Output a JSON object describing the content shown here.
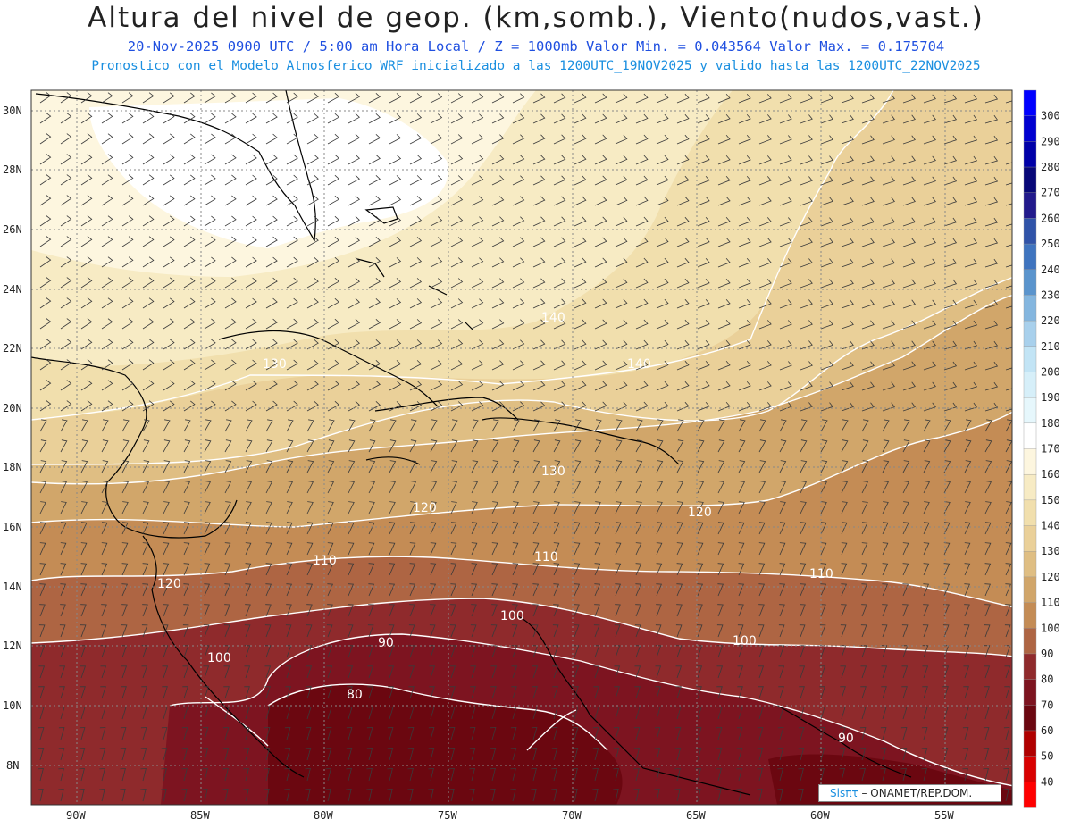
{
  "header": {
    "title": "Altura del nivel de geop. (km,somb.), Viento(nudos,vast.)",
    "subtitle": "20-Nov-2025  0900 UTC / 5:00 am Hora Local / Z = 1000mb  Valor Min. = 0.043564  Valor Max. = 0.175704",
    "model_line": "Pronostico con el Modelo Atmosferico WRF inicializado a las 1200UTC_19NOV2025 y valido hasta las  1200UTC_22NOV2025"
  },
  "map": {
    "lat_labels": [
      "30N",
      "28N",
      "26N",
      "24N",
      "22N",
      "20N",
      "18N",
      "16N",
      "14N",
      "12N",
      "10N",
      "8N"
    ],
    "lon_labels": [
      "90W",
      "85W",
      "80W",
      "75W",
      "70W",
      "65W",
      "60W",
      "55W"
    ],
    "contour_labels": [
      "140",
      "130",
      "130",
      "120",
      "120",
      "120",
      "110",
      "110",
      "110",
      "100",
      "100",
      "100",
      "90",
      "90",
      "80"
    ],
    "colors": {
      "c170": "#fdf6df",
      "c160": "#f7ebc4",
      "c150": "#f1dfad",
      "c140": "#ead099",
      "c130": "#dfbe83",
      "c120": "#d1a66a",
      "c110": "#c48c55",
      "c100": "#ae6543",
      "c90": "#8f2a2c",
      "c80": "#7d1420",
      "c70": "#6b0710",
      "land": "#000000"
    }
  },
  "colorbar": {
    "labels": [
      "300",
      "290",
      "280",
      "270",
      "260",
      "250",
      "240",
      "230",
      "220",
      "210",
      "200",
      "190",
      "180",
      "170",
      "160",
      "150",
      "140",
      "130",
      "120",
      "110",
      "100",
      "90",
      "80",
      "70",
      "60",
      "50",
      "40"
    ],
    "colors": [
      "#0000ff",
      "#0000d0",
      "#0000a8",
      "#080878",
      "#221a8c",
      "#3053a8",
      "#3f74bf",
      "#5a94cd",
      "#84b6df",
      "#a8d0ec",
      "#c2e4f5",
      "#d6eff9",
      "#e6f7fc",
      "#ffffff",
      "#fdf6df",
      "#f7ebc4",
      "#f1dfad",
      "#ead099",
      "#dfbe83",
      "#d1a66a",
      "#c48c55",
      "#ae6543",
      "#8f2a2c",
      "#7d1420",
      "#6b0710",
      "#b00000",
      "#d80000",
      "#ff0000"
    ]
  },
  "credit": {
    "brand": "Sisπτ",
    "text": " –  ONAMET/REP.DOM."
  }
}
